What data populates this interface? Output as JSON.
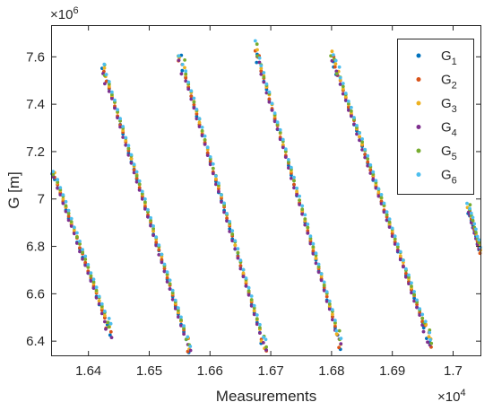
{
  "chart_data": {
    "type": "scatter",
    "title": "",
    "xlabel": "Measurements",
    "ylabel": "G [m]",
    "x_exponent": "×10^4",
    "y_exponent": "×10^6",
    "xlim": [
      1.634,
      1.7045
    ],
    "ylim": [
      6.34,
      7.73
    ],
    "xticks": [
      1.64,
      1.65,
      1.66,
      1.67,
      1.68,
      1.69,
      1.7
    ],
    "xtick_labels": [
      "1.64",
      "1.65",
      "1.66",
      "1.67",
      "1.68",
      "1.69",
      "1.7"
    ],
    "yticks": [
      6.4,
      6.6,
      6.8,
      7.0,
      7.2,
      7.4,
      7.6
    ],
    "ytick_labels": [
      "6.4",
      "6.6",
      "6.8",
      "7",
      "7.2",
      "7.4",
      "7.6"
    ],
    "grid": false,
    "legend_position": "top-right",
    "series": [
      {
        "name": "G",
        "subscript": "1",
        "color": "#0072BD"
      },
      {
        "name": "G",
        "subscript": "2",
        "color": "#D95319"
      },
      {
        "name": "G",
        "subscript": "3",
        "color": "#EDB120"
      },
      {
        "name": "G",
        "subscript": "4",
        "color": "#7E2F8E"
      },
      {
        "name": "G",
        "subscript": "5",
        "color": "#77AC30"
      },
      {
        "name": "G",
        "subscript": "6",
        "color": "#4DBEEE"
      }
    ],
    "segments": [
      {
        "x_start": 1.634,
        "x_end": 1.6436,
        "y_start": 7.13,
        "y_end": 6.44
      },
      {
        "x_start": 1.6425,
        "x_end": 1.6566,
        "y_start": 7.55,
        "y_end": 6.37
      },
      {
        "x_start": 1.6551,
        "x_end": 1.6691,
        "y_start": 7.6,
        "y_end": 6.37
      },
      {
        "x_start": 1.6675,
        "x_end": 1.6815,
        "y_start": 7.63,
        "y_end": 6.39
      },
      {
        "x_start": 1.6801,
        "x_end": 1.6963,
        "y_start": 7.6,
        "y_end": 6.39
      },
      {
        "x_start": 1.7025,
        "x_end": 1.7045,
        "y_start": 6.97,
        "y_end": 6.78
      }
    ]
  }
}
